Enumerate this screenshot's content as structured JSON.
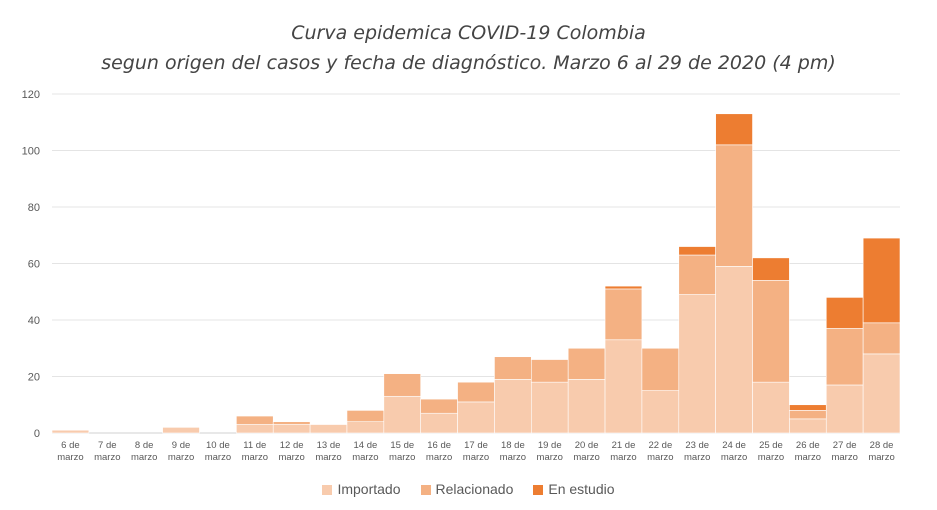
{
  "chart_data": {
    "type": "bar",
    "stacked": true,
    "title": "Curva epidemica COVID-19 Colombia",
    "subtitle": "segun origen del casos y fecha de diagnóstico. Marzo 6 al 29 de 2020 (4 pm)",
    "categories": [
      [
        "6 de",
        "marzo"
      ],
      [
        "7 de",
        "marzo"
      ],
      [
        "8 de",
        "marzo"
      ],
      [
        "9 de",
        "marzo"
      ],
      [
        "10 de",
        "marzo"
      ],
      [
        "11 de",
        "marzo"
      ],
      [
        "12 de",
        "marzo"
      ],
      [
        "13 de",
        "marzo"
      ],
      [
        "14 de",
        "marzo"
      ],
      [
        "15 de",
        "marzo"
      ],
      [
        "16 de",
        "marzo"
      ],
      [
        "17 de",
        "marzo"
      ],
      [
        "18 de",
        "marzo"
      ],
      [
        "19 de",
        "marzo"
      ],
      [
        "20 de",
        "marzo"
      ],
      [
        "21 de",
        "marzo"
      ],
      [
        "22 de",
        "marzo"
      ],
      [
        "23 de",
        "marzo"
      ],
      [
        "24 de",
        "marzo"
      ],
      [
        "25 de",
        "marzo"
      ],
      [
        "26 de",
        "marzo"
      ],
      [
        "27 de",
        "marzo"
      ],
      [
        "28 de",
        "marzo"
      ]
    ],
    "series": [
      {
        "name": "Importado",
        "color": "#F8CBAD",
        "values": [
          1,
          0,
          0,
          2,
          0,
          3,
          3,
          3,
          4,
          13,
          7,
          11,
          19,
          18,
          19,
          33,
          15,
          49,
          59,
          18,
          5,
          17,
          28
        ]
      },
      {
        "name": "Relacionado",
        "color": "#F4B183",
        "values": [
          0,
          0,
          0,
          0,
          0,
          3,
          1,
          0,
          4,
          8,
          5,
          7,
          8,
          8,
          11,
          18,
          15,
          14,
          43,
          36,
          3,
          20,
          11
        ]
      },
      {
        "name": "En estudio",
        "color": "#ED7D31",
        "values": [
          0,
          0,
          0,
          0,
          0,
          0,
          0,
          0,
          0,
          0,
          0,
          0,
          0,
          0,
          0,
          1,
          0,
          3,
          11,
          8,
          2,
          11,
          30
        ]
      }
    ],
    "ylim": [
      0,
      120
    ],
    "yticks": [
      0,
      20,
      40,
      60,
      80,
      100,
      120
    ],
    "grid": true,
    "legend_position": "bottom"
  }
}
